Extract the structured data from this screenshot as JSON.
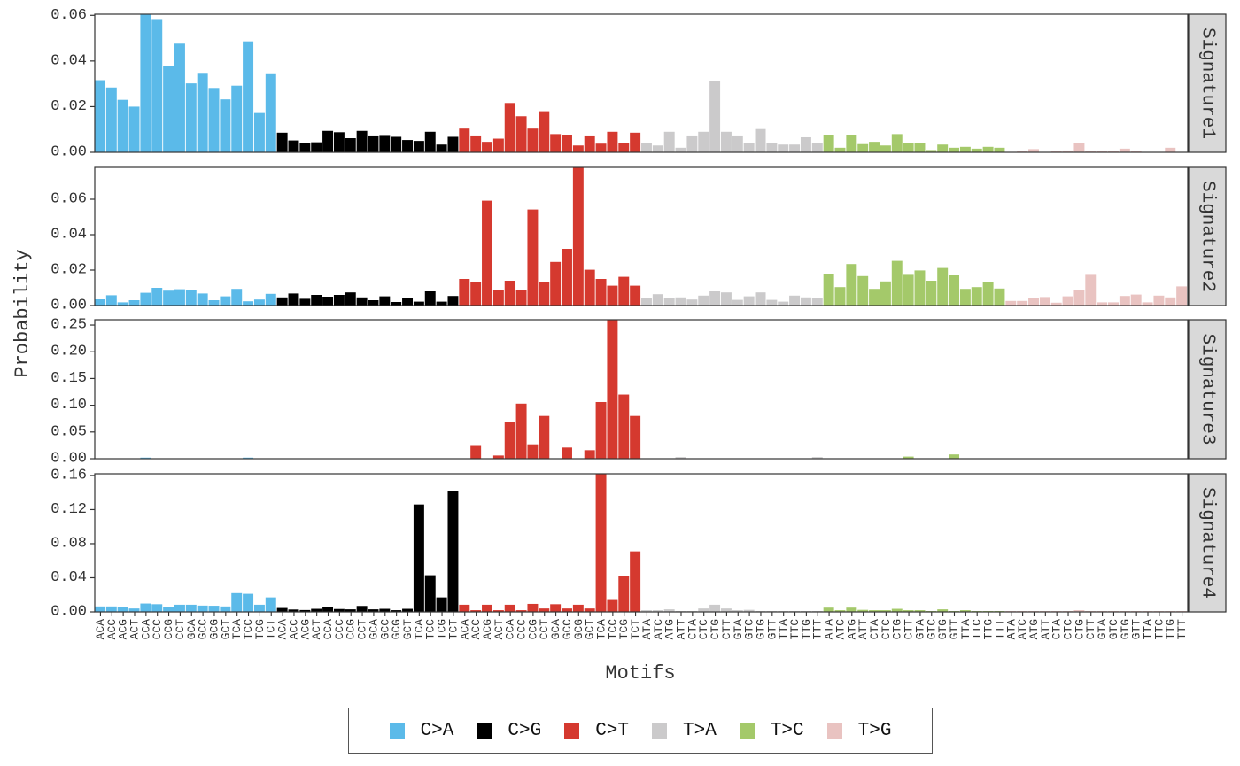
{
  "chart_data": {
    "type": "bar",
    "xlabel": "Motifs",
    "ylabel": "Probability",
    "legend_position": "bottom",
    "grid": false,
    "mutation_types": [
      {
        "name": "C>A",
        "color": "#5BBAE9"
      },
      {
        "name": "C>G",
        "color": "#000000"
      },
      {
        "name": "C>T",
        "color": "#D5392F"
      },
      {
        "name": "T>A",
        "color": "#CBCACB"
      },
      {
        "name": "T>C",
        "color": "#A4C96A"
      },
      {
        "name": "T>G",
        "color": "#E9C3C1"
      }
    ],
    "categories": [
      "ACA",
      "ACC",
      "ACG",
      "ACT",
      "CCA",
      "CCC",
      "CCG",
      "CCT",
      "GCA",
      "GCC",
      "GCG",
      "GCT",
      "TCA",
      "TCC",
      "TCG",
      "TCT",
      "ACA",
      "ACC",
      "ACG",
      "ACT",
      "CCA",
      "CCC",
      "CCG",
      "CCT",
      "GCA",
      "GCC",
      "GCG",
      "GCT",
      "TCA",
      "TCC",
      "TCG",
      "TCT",
      "ACA",
      "ACC",
      "ACG",
      "ACT",
      "CCA",
      "CCC",
      "CCG",
      "CCT",
      "GCA",
      "GCC",
      "GCG",
      "GCT",
      "TCA",
      "TCC",
      "TCG",
      "TCT",
      "ATA",
      "ATC",
      "ATG",
      "ATT",
      "CTA",
      "CTC",
      "CTG",
      "CTT",
      "GTA",
      "GTC",
      "GTG",
      "GTT",
      "TTA",
      "TTC",
      "TTG",
      "TTT",
      "ATA",
      "ATC",
      "ATG",
      "ATT",
      "CTA",
      "CTC",
      "CTG",
      "CTT",
      "GTA",
      "GTC",
      "GTG",
      "GTT",
      "TTA",
      "TTC",
      "TTG",
      "TTT",
      "ATA",
      "ATC",
      "ATG",
      "ATT",
      "CTA",
      "CTC",
      "CTG",
      "CTT",
      "GTA",
      "GTC",
      "GTG",
      "GTT",
      "TTA",
      "TTC",
      "TTG",
      "TTT"
    ],
    "panels": [
      {
        "name": "Signature1",
        "ylim": [
          0,
          0.0605
        ],
        "ticks": [
          0,
          0.02,
          0.04,
          0.06
        ],
        "tick_labels": [
          "0.00",
          "0.02",
          "0.04",
          "0.06"
        ],
        "values": [
          0.0316,
          0.0284,
          0.023,
          0.02,
          0.0618,
          0.058,
          0.0378,
          0.0476,
          0.0302,
          0.0348,
          0.0282,
          0.0232,
          0.0292,
          0.0486,
          0.0172,
          0.0346,
          0.0086,
          0.0052,
          0.004,
          0.0044,
          0.0094,
          0.0088,
          0.0062,
          0.0094,
          0.007,
          0.0072,
          0.0068,
          0.0054,
          0.005,
          0.009,
          0.0034,
          0.0068,
          0.0104,
          0.007,
          0.0046,
          0.006,
          0.0216,
          0.0158,
          0.0104,
          0.018,
          0.008,
          0.0076,
          0.003,
          0.007,
          0.0038,
          0.009,
          0.004,
          0.0086,
          0.004,
          0.003,
          0.009,
          0.002,
          0.007,
          0.009,
          0.0312,
          0.009,
          0.007,
          0.004,
          0.0102,
          0.004,
          0.0034,
          0.0034,
          0.0066,
          0.0042,
          0.0074,
          0.002,
          0.0074,
          0.0036,
          0.0046,
          0.003,
          0.008,
          0.004,
          0.004,
          0.001,
          0.0034,
          0.002,
          0.0024,
          0.0016,
          0.0024,
          0.002,
          0.0002,
          0.0004,
          0.0014,
          0.0002,
          0.0006,
          0.0008,
          0.004,
          0.0004,
          0.0006,
          0.0006,
          0.0016,
          0.0006,
          0.0002,
          0.0002,
          0.002,
          0.0002
        ]
      },
      {
        "name": "Signature2",
        "ylim": [
          0,
          0.078
        ],
        "ticks": [
          0,
          0.02,
          0.04,
          0.06
        ],
        "tick_labels": [
          "0.00",
          "0.02",
          "0.04",
          "0.06"
        ],
        "values": [
          0.0035,
          0.0058,
          0.0018,
          0.003,
          0.0072,
          0.01,
          0.0084,
          0.0092,
          0.0086,
          0.0068,
          0.003,
          0.0052,
          0.0094,
          0.0024,
          0.0034,
          0.0066,
          0.0046,
          0.0068,
          0.0038,
          0.006,
          0.005,
          0.006,
          0.0074,
          0.0046,
          0.003,
          0.0052,
          0.002,
          0.004,
          0.0022,
          0.008,
          0.0022,
          0.0054,
          0.015,
          0.0134,
          0.0592,
          0.009,
          0.014,
          0.0086,
          0.0542,
          0.0134,
          0.0246,
          0.032,
          0.078,
          0.0202,
          0.015,
          0.0112,
          0.0162,
          0.0112,
          0.004,
          0.0064,
          0.0044,
          0.0046,
          0.0034,
          0.0056,
          0.008,
          0.0074,
          0.0032,
          0.0052,
          0.0074,
          0.0032,
          0.0022,
          0.0056,
          0.0046,
          0.0044,
          0.018,
          0.0104,
          0.0234,
          0.0166,
          0.0094,
          0.0136,
          0.0252,
          0.0178,
          0.0198,
          0.014,
          0.0212,
          0.0172,
          0.0094,
          0.0104,
          0.0132,
          0.0096,
          0.0026,
          0.0026,
          0.004,
          0.0048,
          0.0016,
          0.0052,
          0.009,
          0.0178,
          0.0018,
          0.0018,
          0.0054,
          0.0062,
          0.0018,
          0.0056,
          0.0046,
          0.0108
        ]
      },
      {
        "name": "Signature3",
        "ylim": [
          0,
          0.26
        ],
        "ticks": [
          0,
          0.05,
          0.1,
          0.15,
          0.2,
          0.25
        ],
        "tick_labels": [
          "0.00",
          "0.05",
          "0.10",
          "0.15",
          "0.20",
          "0.25"
        ],
        "values": [
          0.0005,
          0.0005,
          0.0005,
          0.0005,
          0.002,
          0.0005,
          0.0005,
          0.0005,
          0.0005,
          0.0005,
          0.0005,
          0.0005,
          0.0005,
          0.002,
          0.0005,
          0.0005,
          0.0005,
          0.0005,
          0.0005,
          0.0005,
          0.0005,
          0.0005,
          0.0005,
          0.0005,
          0.0005,
          0.0005,
          0.0005,
          0.0005,
          0.0005,
          0.0005,
          0.0005,
          0.0005,
          0.0005,
          0.024,
          0.0005,
          0.006,
          0.068,
          0.103,
          0.027,
          0.08,
          0.0005,
          0.021,
          0.0005,
          0.016,
          0.106,
          0.261,
          0.12,
          0.08,
          0.0005,
          0.0005,
          0.0005,
          0.003,
          0.0005,
          0.0005,
          0.0005,
          0.0005,
          0.0005,
          0.0005,
          0.0005,
          0.0005,
          0.0005,
          0.0005,
          0.0005,
          0.003,
          0.0005,
          0.0005,
          0.0005,
          0.0005,
          0.0005,
          0.0005,
          0.0005,
          0.004,
          0.0005,
          0.0005,
          0.0005,
          0.008,
          0.0005,
          0.0005,
          0.0005,
          0.0005,
          0.0005,
          0.0005,
          0.0005,
          0.0005,
          0.0005,
          0.0005,
          0.0005,
          0.0005,
          0.0005,
          0.0005,
          0.0005,
          0.0005,
          0.0005,
          0.0005,
          0.0005,
          0.0005
        ]
      },
      {
        "name": "Signature4",
        "ylim": [
          0,
          0.162
        ],
        "ticks": [
          0,
          0.04,
          0.08,
          0.12,
          0.16
        ],
        "tick_labels": [
          "0.00",
          "0.04",
          "0.08",
          "0.12",
          "0.16"
        ],
        "values": [
          0.0064,
          0.0064,
          0.0054,
          0.004,
          0.0098,
          0.009,
          0.006,
          0.0084,
          0.0084,
          0.0074,
          0.0072,
          0.0064,
          0.022,
          0.0212,
          0.0084,
          0.017,
          0.0046,
          0.0028,
          0.0022,
          0.0036,
          0.006,
          0.0034,
          0.003,
          0.007,
          0.003,
          0.0036,
          0.002,
          0.0036,
          0.126,
          0.043,
          0.017,
          0.142,
          0.0084,
          0.002,
          0.0084,
          0.002,
          0.0084,
          0.002,
          0.0094,
          0.004,
          0.009,
          0.004,
          0.0084,
          0.004,
          0.163,
          0.015,
          0.042,
          0.071,
          0.002,
          0.002,
          0.003,
          0.001,
          0.001,
          0.004,
          0.0084,
          0.004,
          0.002,
          0.0024,
          0.001,
          0.001,
          0.001,
          0.001,
          0.001,
          0.001,
          0.005,
          0.002,
          0.005,
          0.0024,
          0.002,
          0.002,
          0.0036,
          0.002,
          0.002,
          0.001,
          0.003,
          0.001,
          0.002,
          0.001,
          0.001,
          0.001,
          0.001,
          0.001,
          0.001,
          0.001,
          0.001,
          0.001,
          0.002,
          0.001,
          0.001,
          0.001,
          0.001,
          0.001,
          0.001,
          0.001,
          0.001,
          0.001
        ]
      }
    ]
  }
}
